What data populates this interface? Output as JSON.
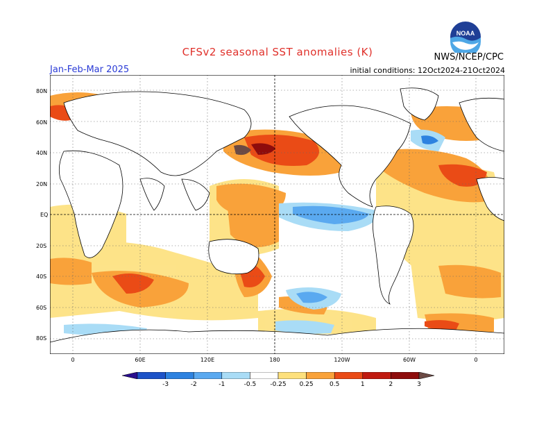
{
  "header": {
    "title": "CFSv2 seasonal SST anomalies (K)",
    "season": "Jan-Feb-Mar 2025",
    "initial_conditions": "initial conditions: 12Oct2024-21Oct2024",
    "agency": "NWS/NCEP/CPC",
    "logo_text": "NOAA"
  },
  "axes": {
    "lat_labels": [
      "80N",
      "60N",
      "40N",
      "20N",
      "EQ",
      "20S",
      "40S",
      "60S",
      "80S"
    ],
    "lon_labels": [
      "0",
      "60E",
      "120E",
      "180",
      "120W",
      "60W",
      "0"
    ]
  },
  "colorbar": {
    "labels": [
      "-3",
      "-2",
      "-1",
      "-0.5",
      "-0.25",
      "0.25",
      "0.5",
      "1",
      "2",
      "3"
    ],
    "colors": [
      "#2a0f8f",
      "#1d53c8",
      "#2d82e0",
      "#5aa9f0",
      "#a9dcf6",
      "#ffffff",
      "#fde07c",
      "#f9a23a",
      "#ea4b16",
      "#c01a10",
      "#8e0c0c",
      "#6b4a44"
    ]
  }
}
